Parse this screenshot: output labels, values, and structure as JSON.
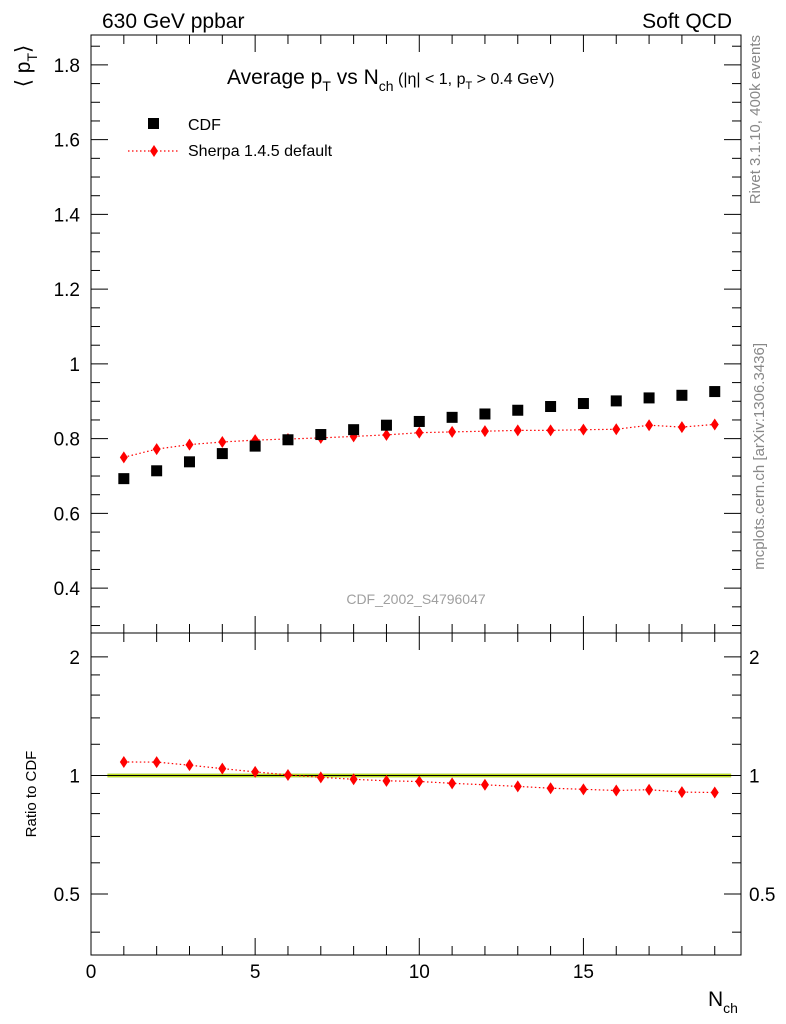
{
  "header": {
    "left": "630 GeV ppbar",
    "right": "Soft QCD"
  },
  "side_text": {
    "rivet": "Rivet 3.1.10,  400k events",
    "site": "mcplots.cern.ch [arXiv:1306.3436]"
  },
  "colors": {
    "data": "#000000",
    "mc": "#ff0000",
    "band": "#ffff00",
    "band_edge": "#9acd32"
  },
  "chart_data": [
    {
      "type": "scatter",
      "panel": "main",
      "title_parts": {
        "prefix": "Average p",
        "sub1": "T",
        "mid": " vs N",
        "sub2": "ch",
        "cuts_a": " (|η| < 1, p",
        "cuts_sub": "T",
        "cuts_b": " > 0.4 GeV)"
      },
      "ylabel_parts": {
        "left": "⟨ p",
        "sub": "T",
        "right": "⟩"
      },
      "analysis_label": "CDF_2002_S4796047",
      "xlim": [
        0,
        19.8
      ],
      "ylim": [
        0.28,
        1.88
      ],
      "yticks": [
        0.4,
        0.6,
        0.8,
        1,
        1.2,
        1.4,
        1.6,
        1.8
      ],
      "ytick_labels": [
        "0.4",
        "0.6",
        "0.8",
        "1",
        "1.2",
        "1.4",
        "1.6",
        "1.8"
      ],
      "legend_position": "top-left",
      "x": [
        1,
        2,
        3,
        4,
        5,
        6,
        7,
        8,
        9,
        10,
        11,
        12,
        13,
        14,
        15,
        16,
        17,
        18,
        19
      ],
      "series": [
        {
          "name": "CDF",
          "marker": "square",
          "values": [
            0.693,
            0.714,
            0.738,
            0.76,
            0.78,
            0.797,
            0.811,
            0.824,
            0.836,
            0.846,
            0.857,
            0.866,
            0.876,
            0.886,
            0.894,
            0.901,
            0.909,
            0.916,
            0.926
          ]
        },
        {
          "name": "Sherpa 1.4.5 default",
          "marker": "diamond",
          "line": "dotted",
          "values": [
            0.75,
            0.772,
            0.784,
            0.791,
            0.796,
            0.799,
            0.802,
            0.806,
            0.81,
            0.816,
            0.818,
            0.82,
            0.822,
            0.822,
            0.824,
            0.825,
            0.836,
            0.831,
            0.838
          ]
        }
      ]
    },
    {
      "type": "scatter",
      "panel": "ratio",
      "ylabel": "Ratio to CDF",
      "xlabel_parts": {
        "main": "N",
        "sub": "ch"
      },
      "xlim": [
        0,
        19.8
      ],
      "ylim": [
        0.35,
        2.3
      ],
      "log_y": true,
      "yticks": [
        0.5,
        1,
        2
      ],
      "ytick_labels": [
        "0.5",
        "1",
        "2"
      ],
      "xticks": [
        0,
        5,
        10,
        15
      ],
      "xtick_labels": [
        "0",
        "5",
        "10",
        "15"
      ],
      "x": [
        1,
        2,
        3,
        4,
        5,
        6,
        7,
        8,
        9,
        10,
        11,
        12,
        13,
        14,
        15,
        16,
        17,
        18,
        19
      ],
      "series": [
        {
          "name": "Sherpa 1.4.5 default",
          "marker": "diamond",
          "line": "dotted",
          "values": [
            1.082,
            1.081,
            1.062,
            1.041,
            1.021,
            1.003,
            0.989,
            0.978,
            0.969,
            0.965,
            0.955,
            0.947,
            0.938,
            0.928,
            0.922,
            0.916,
            0.92,
            0.907,
            0.905
          ]
        }
      ]
    }
  ]
}
